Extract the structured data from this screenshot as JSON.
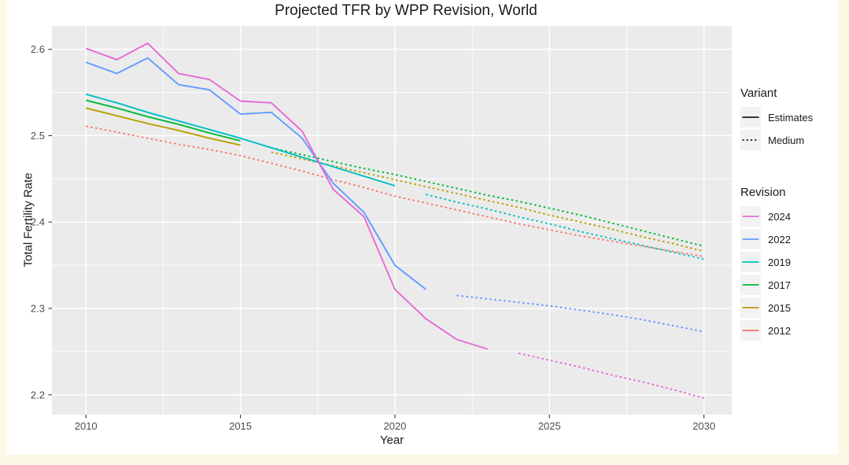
{
  "page": {
    "background_color": "#FCF8E6"
  },
  "chart_data": {
    "type": "line",
    "title": "Projected TFR by WPP Revision, World",
    "xlabel": "Year",
    "ylabel": "Total Fertility Rate",
    "plot_background": "#FFFFFF",
    "panel_background": "#EBEBEB",
    "grid_color": "#FFFFFF",
    "tick_color": "#333333",
    "axis_text_color": "#4D4D4D",
    "key_background": "#F2F2F2",
    "grid": true,
    "legend_position": "right",
    "xlim": [
      2008.9,
      2030.9
    ],
    "ylim": [
      2.177,
      2.627
    ],
    "x_ticks": {
      "values": [
        2010,
        2015,
        2020,
        2025,
        2030
      ],
      "labels": [
        "2010",
        "2015",
        "2020",
        "2025",
        "2030"
      ]
    },
    "x_minor": [
      2012.5,
      2017.5,
      2022.5,
      2027.5
    ],
    "y_ticks": {
      "values": [
        2.2,
        2.3,
        2.4,
        2.5,
        2.6
      ],
      "labels": [
        "2.2",
        "2.3",
        "2.4",
        "2.5",
        "2.6"
      ]
    },
    "y_minor": [
      2.25,
      2.35,
      2.45,
      2.55
    ],
    "legend": {
      "variant": {
        "title": "Variant",
        "items": [
          {
            "label": "Estimates",
            "dash": false,
            "color": "#1a1a1a"
          },
          {
            "label": "Medium",
            "dash": true,
            "color": "#1a1a1a"
          }
        ]
      },
      "revision": {
        "title": "Revision",
        "items": [
          {
            "label": "2024",
            "color": "#E669D5"
          },
          {
            "label": "2022",
            "color": "#619CFF"
          },
          {
            "label": "2019",
            "color": "#00BFC4"
          },
          {
            "label": "2017",
            "color": "#00BA38"
          },
          {
            "label": "2015",
            "color": "#B79F00"
          },
          {
            "label": "2012",
            "color": "#F8766D"
          }
        ]
      }
    },
    "series": [
      {
        "revision": "2012",
        "variant": "Medium",
        "color": "#F8766D",
        "dash": true,
        "x": [
          2010,
          2011,
          2012,
          2013,
          2014,
          2015,
          2016,
          2017,
          2018,
          2019,
          2020,
          2021,
          2022,
          2023,
          2024,
          2025,
          2026,
          2027,
          2028,
          2029,
          2030
        ],
        "y": [
          2.511,
          2.504,
          2.497,
          2.49,
          2.484,
          2.477,
          2.468,
          2.459,
          2.449,
          2.44,
          2.43,
          2.422,
          2.414,
          2.406,
          2.398,
          2.391,
          2.384,
          2.378,
          2.372,
          2.366,
          2.36
        ]
      },
      {
        "revision": "2015",
        "variant": "Estimates",
        "color": "#B79F00",
        "dash": false,
        "x": [
          2010,
          2011,
          2012,
          2013,
          2014,
          2015
        ],
        "y": [
          2.532,
          2.523,
          2.514,
          2.506,
          2.497,
          2.489
        ]
      },
      {
        "revision": "2015",
        "variant": "Medium",
        "color": "#B79F00",
        "dash": true,
        "x": [
          2016,
          2017,
          2018,
          2019,
          2020,
          2021,
          2022,
          2023,
          2024,
          2025,
          2026,
          2027,
          2028,
          2029,
          2030
        ],
        "y": [
          2.481,
          2.473,
          2.465,
          2.457,
          2.449,
          2.441,
          2.433,
          2.425,
          2.417,
          2.408,
          2.4,
          2.392,
          2.383,
          2.375,
          2.366
        ]
      },
      {
        "revision": "2017",
        "variant": "Estimates",
        "color": "#00BA38",
        "dash": false,
        "x": [
          2010,
          2011,
          2012,
          2013,
          2014,
          2015
        ],
        "y": [
          2.541,
          2.532,
          2.522,
          2.513,
          2.503,
          2.494
        ]
      },
      {
        "revision": "2017",
        "variant": "Medium",
        "color": "#00BA38",
        "dash": true,
        "x": [
          2016,
          2017,
          2018,
          2019,
          2020,
          2021,
          2022,
          2023,
          2024,
          2025,
          2026,
          2027,
          2028,
          2029,
          2030
        ],
        "y": [
          2.486,
          2.478,
          2.47,
          2.462,
          2.455,
          2.447,
          2.439,
          2.431,
          2.424,
          2.416,
          2.408,
          2.399,
          2.39,
          2.381,
          2.372
        ]
      },
      {
        "revision": "2019",
        "variant": "Estimates",
        "color": "#00BFC4",
        "dash": false,
        "x": [
          2010,
          2011,
          2012,
          2013,
          2014,
          2015,
          2016,
          2017,
          2018,
          2019,
          2020
        ],
        "y": [
          2.548,
          2.538,
          2.527,
          2.517,
          2.507,
          2.497,
          2.486,
          2.475,
          2.464,
          2.453,
          2.442
        ]
      },
      {
        "revision": "2019",
        "variant": "Medium",
        "color": "#00BFC4",
        "dash": true,
        "x": [
          2021,
          2022,
          2023,
          2024,
          2025,
          2026,
          2027,
          2028,
          2029,
          2030
        ],
        "y": [
          2.432,
          2.423,
          2.415,
          2.406,
          2.398,
          2.389,
          2.381,
          2.373,
          2.365,
          2.357
        ]
      },
      {
        "revision": "2022",
        "variant": "Estimates",
        "color": "#619CFF",
        "dash": false,
        "x": [
          2010,
          2011,
          2012,
          2013,
          2014,
          2015,
          2016,
          2017,
          2018,
          2019,
          2020,
          2021
        ],
        "y": [
          2.585,
          2.572,
          2.59,
          2.559,
          2.553,
          2.525,
          2.527,
          2.497,
          2.445,
          2.411,
          2.35,
          2.322
        ]
      },
      {
        "revision": "2022",
        "variant": "Medium",
        "color": "#619CFF",
        "dash": true,
        "x": [
          2022,
          2023,
          2024,
          2025,
          2026,
          2027,
          2028,
          2029,
          2030
        ],
        "y": [
          2.315,
          2.311,
          2.307,
          2.303,
          2.298,
          2.293,
          2.287,
          2.28,
          2.273
        ]
      },
      {
        "revision": "2024",
        "variant": "Estimates",
        "color": "#E669D5",
        "dash": false,
        "x": [
          2010,
          2011,
          2012,
          2013,
          2014,
          2015,
          2016,
          2017,
          2018,
          2019,
          2020,
          2021,
          2022,
          2023
        ],
        "y": [
          2.601,
          2.588,
          2.607,
          2.572,
          2.565,
          2.54,
          2.538,
          2.505,
          2.438,
          2.406,
          2.322,
          2.288,
          2.264,
          2.253
        ]
      },
      {
        "revision": "2024",
        "variant": "Medium",
        "color": "#E669D5",
        "dash": true,
        "x": [
          2024,
          2025,
          2026,
          2027,
          2028,
          2029,
          2030
        ],
        "y": [
          2.248,
          2.24,
          2.232,
          2.223,
          2.215,
          2.206,
          2.196
        ]
      }
    ]
  }
}
